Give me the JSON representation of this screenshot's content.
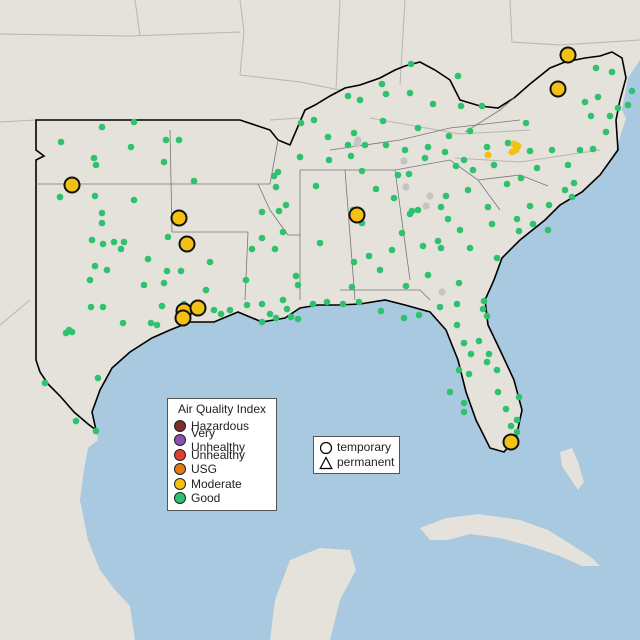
{
  "legend": {
    "title": "Air Quality Index",
    "categories": [
      {
        "label": "Hazardous",
        "color": "#7e2d28"
      },
      {
        "label": "Very Unhealthy",
        "color": "#8e4fb3"
      },
      {
        "label": "Unhealthy",
        "color": "#e0412f"
      },
      {
        "label": "USG",
        "color": "#e07b13"
      },
      {
        "label": "Moderate",
        "color": "#f2c114"
      },
      {
        "label": "Good",
        "color": "#2ec26e"
      }
    ]
  },
  "monitor_types": {
    "items": [
      {
        "label": "temporary",
        "icon": "circle-outline-icon"
      },
      {
        "label": "permanent",
        "icon": "triangle-outline-icon"
      }
    ]
  },
  "colors": {
    "water": "#a8c9df",
    "land": "#e5e1db",
    "border": "#000000",
    "no_data": "#c4c4c4"
  }
}
